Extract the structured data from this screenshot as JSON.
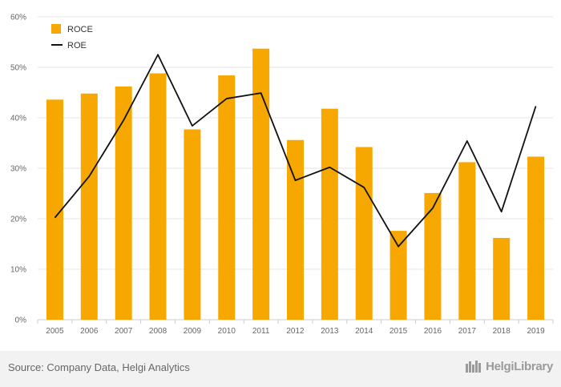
{
  "chart_data": {
    "type": "bar",
    "categories": [
      "2005",
      "2006",
      "2007",
      "2008",
      "2009",
      "2010",
      "2011",
      "2012",
      "2013",
      "2014",
      "2015",
      "2016",
      "2017",
      "2018",
      "2019"
    ],
    "series": [
      {
        "name": "ROCE",
        "type": "bar",
        "color": "#f7a800",
        "values": [
          43.6,
          44.8,
          46.2,
          48.8,
          37.7,
          48.4,
          53.7,
          35.6,
          41.8,
          34.2,
          17.6,
          25.1,
          31.2,
          16.2,
          32.3
        ]
      },
      {
        "name": "ROE",
        "type": "line",
        "color": "#111111",
        "values": [
          20.2,
          28.4,
          39.5,
          52.5,
          38.4,
          43.8,
          44.9,
          27.6,
          30.2,
          26.2,
          14.5,
          22.1,
          35.4,
          21.4,
          42.3
        ]
      }
    ],
    "ylim": [
      0,
      60
    ],
    "yticks": [
      "0%",
      "10%",
      "20%",
      "30%",
      "40%",
      "50%",
      "60%"
    ],
    "grid": true,
    "legend_position": "top-left",
    "xlabel": "",
    "ylabel": ""
  },
  "footer": {
    "source": "Source: Company Data, Helgi Analytics",
    "brand": "HelgiLibrary"
  }
}
